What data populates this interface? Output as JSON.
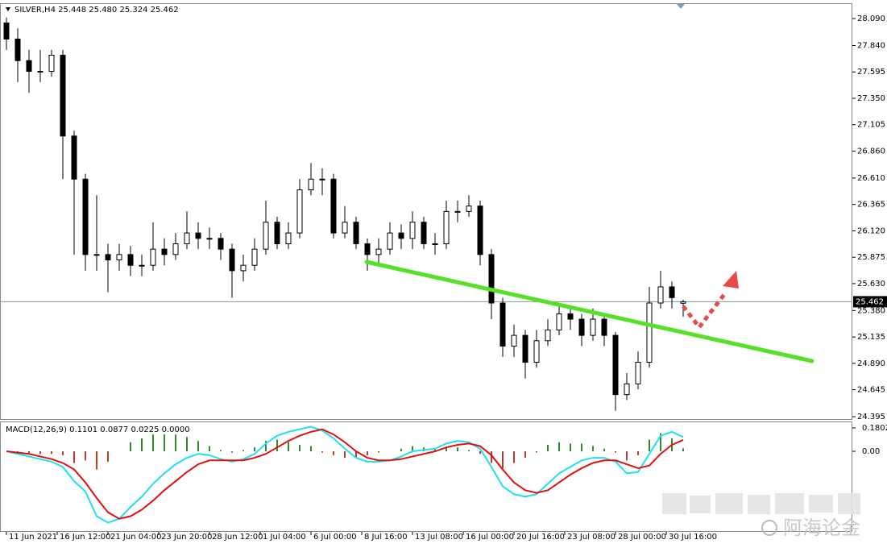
{
  "chart_data": {
    "type": "candlestick",
    "title": "SILVER,H4  25.448 25.480 25.324 25.462",
    "open": [
      28.05,
      27.9,
      27.7,
      27.6,
      27.6,
      27.75,
      27.0,
      26.6,
      25.9,
      25.9,
      25.85,
      25.9,
      25.8,
      25.8,
      25.95,
      25.9,
      26.0,
      26.1,
      26.05,
      26.05,
      25.95,
      25.75,
      25.8,
      25.95,
      26.2,
      26.0,
      26.1,
      26.5,
      26.6,
      26.6,
      26.1,
      26.2,
      26.0,
      25.9,
      25.95,
      26.1,
      26.05,
      26.2,
      26.0,
      26.0,
      26.3,
      26.3,
      26.35,
      25.9,
      25.45,
      25.05,
      25.15,
      24.9,
      25.1,
      25.2,
      25.35,
      25.3,
      25.15,
      25.3,
      25.15,
      24.6,
      24.7,
      24.9,
      25.45,
      25.6,
      25.448
    ],
    "high": [
      28.1,
      28.0,
      27.8,
      27.8,
      27.8,
      27.8,
      27.05,
      26.65,
      26.45,
      26.0,
      26.0,
      25.98,
      25.9,
      26.2,
      26.05,
      26.1,
      26.3,
      26.2,
      26.15,
      26.1,
      26.0,
      25.9,
      26.05,
      26.4,
      26.25,
      26.2,
      26.6,
      26.75,
      26.7,
      26.65,
      26.35,
      26.25,
      26.05,
      26.05,
      26.2,
      26.18,
      26.3,
      26.25,
      26.1,
      26.4,
      26.4,
      26.45,
      26.4,
      25.95,
      25.5,
      25.25,
      25.2,
      25.2,
      25.3,
      25.45,
      25.42,
      25.35,
      25.4,
      25.32,
      25.18,
      24.8,
      25.0,
      25.6,
      25.75,
      25.65,
      25.48
    ],
    "low": [
      27.8,
      27.5,
      27.4,
      27.5,
      27.55,
      26.6,
      25.9,
      25.75,
      25.75,
      25.55,
      25.75,
      25.7,
      25.7,
      25.75,
      25.8,
      25.85,
      25.95,
      25.95,
      25.95,
      25.85,
      25.5,
      25.65,
      25.75,
      25.9,
      25.95,
      25.95,
      26.05,
      26.45,
      26.45,
      26.05,
      26.05,
      25.95,
      25.75,
      25.8,
      25.9,
      25.95,
      25.95,
      25.95,
      25.9,
      25.95,
      26.2,
      26.25,
      25.8,
      25.3,
      24.95,
      24.95,
      24.75,
      24.85,
      25.05,
      25.15,
      25.2,
      25.05,
      25.1,
      25.05,
      24.45,
      24.55,
      24.65,
      24.85,
      25.4,
      25.4,
      25.324
    ],
    "close": [
      27.9,
      27.7,
      27.6,
      27.6,
      27.75,
      27.0,
      26.6,
      25.9,
      25.9,
      25.85,
      25.9,
      25.8,
      25.8,
      25.95,
      25.9,
      26.0,
      26.1,
      26.05,
      26.05,
      25.95,
      25.75,
      25.8,
      25.95,
      26.2,
      26.0,
      26.1,
      26.5,
      26.6,
      26.6,
      26.1,
      26.2,
      26.0,
      25.9,
      25.95,
      26.1,
      26.05,
      26.2,
      26.0,
      26.0,
      26.3,
      26.3,
      26.35,
      25.9,
      25.45,
      25.05,
      25.15,
      24.9,
      25.1,
      25.2,
      25.35,
      25.3,
      25.15,
      25.3,
      25.15,
      24.6,
      24.7,
      24.9,
      25.45,
      25.6,
      25.5,
      25.462
    ],
    "colors": {
      "up": "#ffffff",
      "down": "#000000",
      "outline": "#000000"
    },
    "ylim": [
      24.373,
      28.225
    ],
    "yticks": [
      {
        "value": 28.09,
        "label": "28.090"
      },
      {
        "value": 27.84,
        "label": "27.840"
      },
      27.595,
      {
        "value": 27.35,
        "label": "27.350"
      },
      27.105,
      {
        "value": 26.86,
        "label": "26.860"
      },
      {
        "value": 26.61,
        "label": "26.610"
      },
      26.365,
      {
        "value": 26.12,
        "label": "26.120"
      },
      25.875,
      {
        "value": 25.63,
        "label": "25.630"
      },
      {
        "value": 25.38,
        "label": "25.380"
      },
      25.135,
      {
        "value": 24.89,
        "label": "24.890"
      },
      24.645,
      24.395
    ],
    "last_price": 25.462,
    "xlim": [
      0,
      75
    ],
    "xticks": [
      {
        "value": 0,
        "label": "11 Jun 2021"
      },
      {
        "value": 4.5,
        "label": "16 Jun 12:00"
      },
      {
        "value": 9,
        "label": "21 Jun 04:00"
      },
      {
        "value": 13.5,
        "label": "23 Jun 20:00"
      },
      {
        "value": 18,
        "label": "28 Jun 12:00"
      },
      {
        "value": 22.5,
        "label": "1 Jul 04:00"
      },
      {
        "value": 27,
        "label": "6 Jul 00:00"
      },
      {
        "value": 31.5,
        "label": "8 Jul 16:00"
      },
      {
        "value": 36,
        "label": "13 Jul 08:00"
      },
      {
        "value": 40.5,
        "label": "16 Jul 00:00"
      },
      {
        "value": 45,
        "label": "20 Jul 16:00"
      },
      {
        "value": 49.5,
        "label": "23 Jul 08:00"
      },
      {
        "value": 54,
        "label": "28 Jul 00:00"
      },
      {
        "value": 58.5,
        "label": "30 Jul 16:00"
      }
    ],
    "indicator": {
      "title": "MACD(12,26,9) 0.1101 0.0877 0.0225 0.0000",
      "ylim": [
        -0.621,
        0.2237
      ],
      "yticks": [
        0.1802,
        {
          "value": 0,
          "label": "0.00"
        }
      ],
      "histogram": {
        "up_color": "#2e8b2e",
        "down_color": "#c0392b",
        "values": [
          0,
          -0.01,
          -0.02,
          -0.02,
          -0.02,
          -0.03,
          -0.09,
          -0.07,
          -0.14,
          -0.08,
          0,
          0.07,
          0.1,
          0.13,
          0.13,
          0.13,
          0.11,
          0.08,
          0.04,
          0.01,
          -0.01,
          0.01,
          0.03,
          0.08,
          0.09,
          0.07,
          0.05,
          0.04,
          -0.01,
          -0.03,
          -0.05,
          -0.05,
          -0.03,
          -0.01,
          0,
          0.02,
          0.04,
          0.03,
          0.02,
          0.03,
          0.03,
          0.01,
          -0.02,
          -0.09,
          -0.13,
          -0.09,
          -0.05,
          -0.01,
          0.05,
          0.07,
          0.06,
          0.06,
          0.04,
          0.02,
          -0.01,
          -0.07,
          -0.03,
          0.09,
          0.14,
          0.1,
          0.0225
        ]
      },
      "series": [
        {
          "color": "#1ee0f0",
          "values": [
            0,
            -0.02,
            -0.04,
            -0.06,
            -0.08,
            -0.12,
            -0.23,
            -0.31,
            -0.5,
            -0.55,
            -0.52,
            -0.43,
            -0.35,
            -0.25,
            -0.17,
            -0.1,
            -0.05,
            -0.02,
            -0.03,
            -0.06,
            -0.08,
            -0.06,
            -0.02,
            0.06,
            0.12,
            0.15,
            0.17,
            0.19,
            0.16,
            0.1,
            0.02,
            -0.05,
            -0.08,
            -0.08,
            -0.07,
            -0.04,
            0,
            0.01,
            0.02,
            0.06,
            0.08,
            0.07,
            0.02,
            -0.12,
            -0.27,
            -0.33,
            -0.35,
            -0.33,
            -0.25,
            -0.17,
            -0.12,
            -0.07,
            -0.05,
            -0.05,
            -0.08,
            -0.17,
            -0.16,
            -0.02,
            0.12,
            0.15,
            0.1101
          ]
        },
        {
          "color": "#e01010",
          "values": [
            0,
            -0.01,
            -0.02,
            -0.04,
            -0.06,
            -0.09,
            -0.14,
            -0.24,
            -0.36,
            -0.47,
            -0.52,
            -0.5,
            -0.45,
            -0.38,
            -0.3,
            -0.23,
            -0.16,
            -0.1,
            -0.07,
            -0.07,
            -0.07,
            -0.07,
            -0.05,
            -0.02,
            0.03,
            0.08,
            0.12,
            0.15,
            0.17,
            0.13,
            0.07,
            0,
            -0.05,
            -0.07,
            -0.07,
            -0.06,
            -0.04,
            -0.02,
            0,
            0.03,
            0.05,
            0.06,
            0.04,
            -0.03,
            -0.14,
            -0.24,
            -0.3,
            -0.32,
            -0.3,
            -0.24,
            -0.18,
            -0.13,
            -0.09,
            -0.07,
            -0.07,
            -0.1,
            -0.13,
            -0.11,
            -0.02,
            0.05,
            0.0877
          ]
        }
      ]
    },
    "watermark": "阿海论金"
  }
}
